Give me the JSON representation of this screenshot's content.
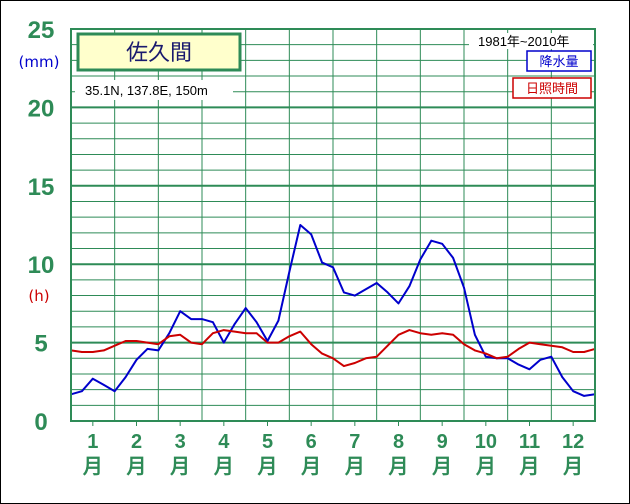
{
  "chart_data": {
    "type": "line",
    "title": "佐久間",
    "subtitle": "35.1N,  137.8E,  150m",
    "period": "1981年~2010年",
    "unit_precip": "(mm)",
    "unit_sun": "(h)",
    "y_tick_labels": [
      "0",
      "5",
      "10",
      "15",
      "20",
      "25"
    ],
    "ylim": [
      0,
      25
    ],
    "x_month_labels": [
      "1",
      "2",
      "3",
      "4",
      "5",
      "6",
      "7",
      "8",
      "9",
      "10",
      "11",
      "12"
    ],
    "x_month_suffix": "月",
    "xlim": [
      1,
      13
    ],
    "grid": true,
    "legend_position": "top-right",
    "colors": {
      "precip": "#0000cc",
      "sun": "#cc0000",
      "grid": "#2e8b57",
      "title_box": "#ffffcc"
    },
    "series": [
      {
        "name": "降水量",
        "key": "precip",
        "x": [
          1.0,
          1.25,
          1.5,
          1.75,
          2.0,
          2.25,
          2.5,
          2.75,
          3.0,
          3.25,
          3.5,
          3.75,
          4.0,
          4.25,
          4.5,
          4.75,
          5.0,
          5.25,
          5.5,
          5.75,
          6.0,
          6.25,
          6.5,
          6.75,
          7.0,
          7.25,
          7.5,
          7.75,
          8.0,
          8.25,
          8.5,
          8.75,
          9.0,
          9.25,
          9.5,
          9.75,
          10.0,
          10.25,
          10.5,
          10.75,
          11.0,
          11.25,
          11.5,
          11.75,
          12.0,
          12.25,
          12.5,
          12.75,
          13.0
        ],
        "values": [
          1.7,
          1.9,
          2.7,
          2.3,
          1.9,
          2.8,
          3.9,
          4.6,
          4.5,
          5.6,
          7.0,
          6.5,
          6.5,
          6.3,
          5.0,
          6.2,
          7.2,
          6.3,
          5.1,
          6.4,
          9.5,
          12.5,
          11.9,
          10.1,
          9.8,
          8.2,
          8.0,
          8.4,
          8.8,
          8.2,
          7.5,
          8.6,
          10.3,
          11.5,
          11.3,
          10.4,
          8.5,
          5.5,
          4.1,
          4.0,
          4.0,
          3.6,
          3.3,
          3.9,
          4.1,
          2.8,
          1.9,
          1.6,
          1.7
        ]
      },
      {
        "name": "日照時間",
        "key": "sun",
        "x": [
          1.0,
          1.25,
          1.5,
          1.75,
          2.0,
          2.25,
          2.5,
          2.75,
          3.0,
          3.25,
          3.5,
          3.75,
          4.0,
          4.25,
          4.5,
          4.75,
          5.0,
          5.25,
          5.5,
          5.75,
          6.0,
          6.25,
          6.5,
          6.75,
          7.0,
          7.25,
          7.5,
          7.75,
          8.0,
          8.25,
          8.5,
          8.75,
          9.0,
          9.25,
          9.5,
          9.75,
          10.0,
          10.25,
          10.5,
          10.75,
          11.0,
          11.25,
          11.5,
          11.75,
          12.0,
          12.25,
          12.5,
          12.75,
          13.0
        ],
        "values": [
          4.5,
          4.4,
          4.4,
          4.5,
          4.8,
          5.1,
          5.1,
          5.0,
          4.9,
          5.4,
          5.5,
          5.0,
          4.9,
          5.6,
          5.8,
          5.7,
          5.6,
          5.6,
          5.0,
          5.0,
          5.4,
          5.7,
          4.9,
          4.3,
          4.0,
          3.5,
          3.7,
          4.0,
          4.1,
          4.8,
          5.5,
          5.8,
          5.6,
          5.5,
          5.6,
          5.5,
          4.9,
          4.5,
          4.3,
          4.0,
          4.1,
          4.6,
          5.0,
          4.9,
          4.8,
          4.7,
          4.4,
          4.4,
          4.6
        ]
      }
    ]
  }
}
